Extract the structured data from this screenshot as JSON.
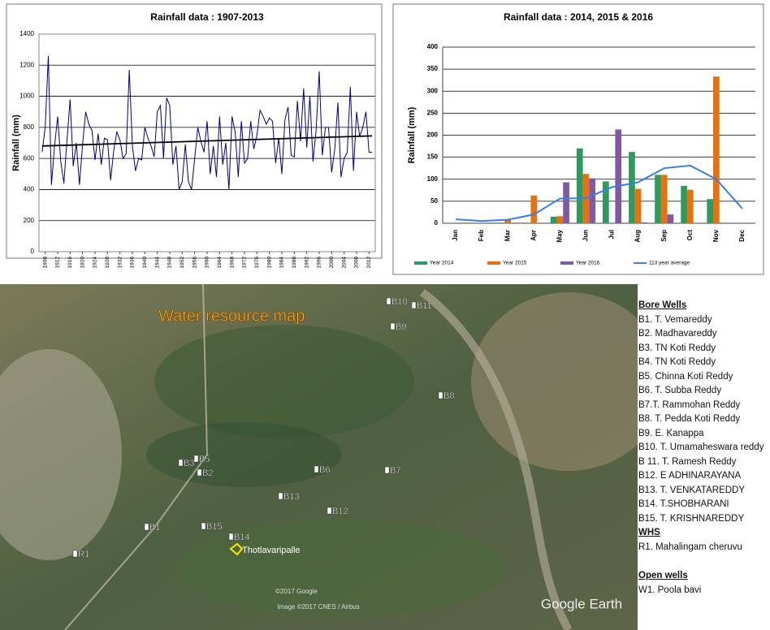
{
  "chart_data": [
    {
      "type": "line",
      "title": "Rainfall data : 1907-2013",
      "ylabel": "Rainfall (mm)",
      "x": [
        1907,
        1908,
        1909,
        1910,
        1911,
        1912,
        1913,
        1914,
        1915,
        1916,
        1917,
        1918,
        1919,
        1920,
        1921,
        1922,
        1923,
        1924,
        1925,
        1926,
        1927,
        1928,
        1929,
        1930,
        1931,
        1932,
        1933,
        1934,
        1935,
        1936,
        1937,
        1938,
        1939,
        1940,
        1941,
        1942,
        1943,
        1944,
        1945,
        1946,
        1947,
        1948,
        1949,
        1950,
        1951,
        1952,
        1953,
        1954,
        1955,
        1956,
        1957,
        1958,
        1959,
        1960,
        1961,
        1962,
        1963,
        1964,
        1965,
        1966,
        1967,
        1968,
        1969,
        1970,
        1971,
        1972,
        1973,
        1974,
        1975,
        1976,
        1977,
        1978,
        1979,
        1980,
        1981,
        1982,
        1983,
        1984,
        1985,
        1986,
        1987,
        1988,
        1989,
        1990,
        1991,
        1992,
        1993,
        1994,
        1995,
        1996,
        1997,
        1998,
        1999,
        2000,
        2001,
        2002,
        2003,
        2004,
        2005,
        2006,
        2007,
        2008,
        2009,
        2010,
        2011,
        2012,
        2013
      ],
      "series": [
        {
          "color": "#000080",
          "values": [
            640,
            800,
            1260,
            430,
            680,
            870,
            580,
            440,
            720,
            980,
            550,
            700,
            430,
            690,
            900,
            820,
            780,
            590,
            760,
            560,
            730,
            720,
            460,
            650,
            770,
            720,
            600,
            630,
            1170,
            680,
            520,
            600,
            590,
            800,
            730,
            680,
            610,
            900,
            940,
            600,
            990,
            940,
            560,
            680,
            400,
            450,
            690,
            450,
            400,
            600,
            800,
            710,
            640,
            840,
            500,
            680,
            480,
            870,
            560,
            700,
            400,
            870,
            770,
            480,
            840,
            570,
            600,
            840,
            660,
            750,
            910,
            870,
            820,
            860,
            840,
            570,
            730,
            500,
            850,
            930,
            620,
            610,
            970,
            710,
            1050,
            670,
            1000,
            580,
            780,
            1160,
            620,
            800,
            800,
            510,
            660,
            960,
            480,
            600,
            640,
            1060,
            520,
            900,
            740,
            800,
            900,
            640,
            640
          ]
        }
      ],
      "trend": {
        "color": "#000000",
        "x": [
          1907,
          2013
        ],
        "values": [
          680,
          745
        ]
      },
      "xlim": [
        1906,
        2014
      ],
      "xticks": [
        1908,
        1912,
        1916,
        1920,
        1924,
        1928,
        1932,
        1936,
        1940,
        1944,
        1948,
        1952,
        1956,
        1960,
        1964,
        1968,
        1972,
        1976,
        1980,
        1984,
        1988,
        1992,
        1996,
        2000,
        2004,
        2008,
        2012
      ],
      "ylim": [
        0,
        1400
      ],
      "yticks": [
        0,
        200,
        400,
        600,
        800,
        1000,
        1200,
        1400
      ],
      "grid": true
    },
    {
      "type": "bar",
      "title": "Rainfall data  : 2014, 2015 & 2016",
      "ylabel": "Rainfall (mm)",
      "categories": [
        "Jan",
        "Feb",
        "Mar",
        "Apr",
        "May",
        "Jun",
        "Jul",
        "Aug",
        "Sep",
        "Oct",
        "Nov",
        "Dec"
      ],
      "series": [
        {
          "name": "Year 2014",
          "color": "#2e9b5e",
          "values": [
            0,
            0,
            0,
            0,
            15,
            170,
            95,
            162,
            110,
            85,
            55,
            0
          ]
        },
        {
          "name": "Year 2015",
          "color": "#e8700d",
          "values": [
            0,
            0,
            8,
            63,
            16,
            112,
            0,
            78,
            110,
            76,
            333,
            0
          ]
        },
        {
          "name": "Year 2016",
          "color": "#7e5aa6",
          "values": [
            0,
            0,
            0,
            0,
            93,
            102,
            213,
            2,
            20,
            null,
            null,
            null
          ]
        },
        {
          "name": "113 year average",
          "color": "#3a7ee8",
          "type": "line",
          "values": [
            9,
            5,
            8,
            20,
            56,
            57,
            82,
            93,
            125,
            131,
            100,
            33
          ]
        }
      ],
      "ylim": [
        0,
        400
      ],
      "yticks": [
        0,
        50,
        100,
        150,
        200,
        250,
        300,
        350,
        400
      ],
      "grid": true,
      "legend": "bottom"
    }
  ],
  "map": {
    "title": "Water resource map",
    "labels": [
      "B10",
      "B11",
      "B9",
      "B8",
      "B3",
      "B5",
      "B2",
      "B6",
      "B7",
      "B13",
      "B15",
      "B14",
      "B12",
      "B1",
      "R1"
    ],
    "village": "Thotlavaripalle",
    "credits": [
      "©2017 Google",
      "Image ©2017 CNES / Airbus"
    ],
    "brand": "Google Earth"
  },
  "legend": {
    "bore_wells_title": "Bore Wells",
    "bore_wells": [
      "B1. T. Vemareddy",
      "B2.  Madhavareddy",
      "B3.  TN Koti Reddy",
      "B4. TN Koti Reddy",
      "B5. Chinna Koti Reddy",
      "B6. T. Subba Reddy",
      "B7.T. Rammohan Reddy",
      "B8. T. Pedda Koti Reddy",
      "B9. E. Kanappa",
      "B10. T. Umamaheswara reddy",
      "B 11.  T. Ramesh Reddy",
      "B12. E ADHINARAYANA",
      "B13. T. VENKATAREDDY",
      "B14. T.SHOBHARANI",
      "B15. T. KRISHNAREDDY"
    ],
    "whs_title": "WHS",
    "whs": [
      "R1. Mahalingam cheruvu"
    ],
    "open_wells_title": "Open wells",
    "open_wells": [
      "W1. Poola bavi"
    ]
  }
}
